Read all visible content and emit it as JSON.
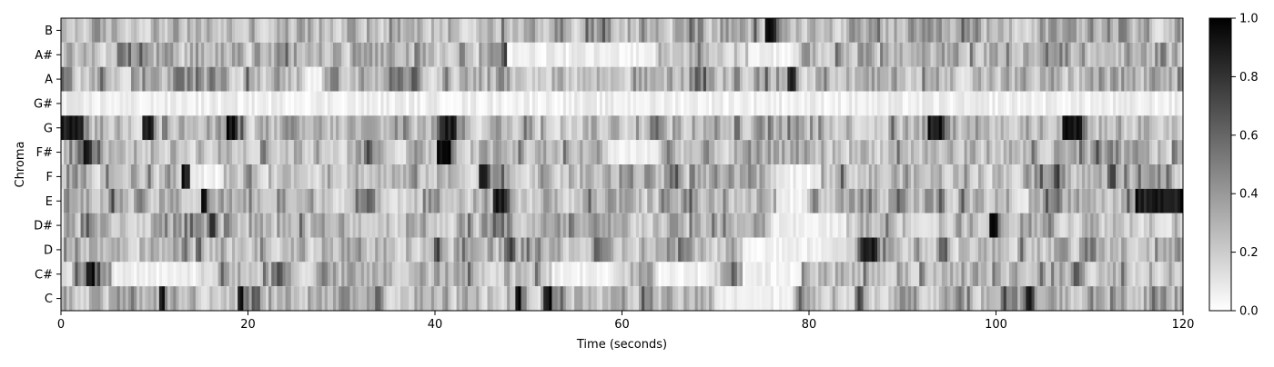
{
  "chart_data": {
    "type": "heatmap",
    "title": "",
    "xlabel": "Time (seconds)",
    "ylabel": "Chroma",
    "xlim": [
      0,
      120
    ],
    "x_ticks": [
      0,
      20,
      40,
      60,
      80,
      100,
      120
    ],
    "x_tick_labels": [
      "0",
      "20",
      "40",
      "60",
      "80",
      "100",
      "120"
    ],
    "rows_top_to_bottom": [
      "B",
      "A#",
      "A",
      "G#",
      "G",
      "F#",
      "F",
      "E",
      "D#",
      "D",
      "C#",
      "C"
    ],
    "colormap": "gray_r",
    "colorbar": {
      "min": 0.0,
      "max": 1.0,
      "ticks": [
        0.0,
        0.2,
        0.4,
        0.6,
        0.8,
        1.0
      ],
      "tick_labels": [
        "0.0",
        "0.2",
        "0.4",
        "0.6",
        "0.8",
        "1.0"
      ]
    },
    "frames_per_row": 400,
    "highlights": {
      "B": [
        [
          75.2,
          76.6
        ]
      ],
      "A#": [],
      "A": [
        [
          77.8,
          78.5
        ]
      ],
      "G#": [],
      "G": [
        [
          0.1,
          2.0
        ],
        [
          8.6,
          9.8
        ],
        [
          17.6,
          18.9
        ],
        [
          40.5,
          42.4
        ],
        [
          92.6,
          94.2
        ],
        [
          107.2,
          109.2
        ]
      ],
      "F#": [
        [
          2.3,
          3.2
        ],
        [
          40.3,
          41.6
        ]
      ],
      "F": [
        [
          12.8,
          13.6
        ],
        [
          44.8,
          45.6
        ]
      ],
      "E": [
        [
          14.9,
          15.6
        ],
        [
          46.3,
          47.6
        ],
        [
          114.8,
          120.0
        ]
      ],
      "D#": [
        [
          15.8,
          16.6
        ],
        [
          99.4,
          100.2
        ]
      ],
      "D": [
        [
          85.6,
          87.4
        ]
      ],
      "C#": [
        [
          2.6,
          3.6
        ]
      ],
      "C": [
        [
          10.6,
          11.2
        ],
        [
          18.8,
          19.5
        ],
        [
          48.5,
          49.3
        ],
        [
          51.6,
          52.4
        ],
        [
          103.1,
          103.9
        ]
      ]
    },
    "quiet_ranges": {
      "B": [],
      "A#": [
        [
          47.8,
          63.5
        ],
        [
          73.4,
          78.8
        ]
      ],
      "A": [
        [
          26.0,
          28.0
        ]
      ],
      "G#": [
        [
          0,
          120
        ]
      ],
      "G": [],
      "F#": [
        [
          58.5,
          64.0
        ]
      ],
      "F": [
        [
          13.8,
          17.2
        ],
        [
          76.6,
          80.6
        ]
      ],
      "E": [
        [
          76.4,
          79.6
        ]
      ],
      "D#": [
        [
          76.0,
          84.0
        ]
      ],
      "D": [
        [
          73.0,
          82.0
        ]
      ],
      "C#": [
        [
          5.5,
          15.0
        ],
        [
          52.6,
          58.6
        ],
        [
          63.6,
          70.0
        ],
        [
          72.8,
          78.6
        ]
      ],
      "C": [
        [
          70.0,
          78.0
        ]
      ]
    }
  }
}
